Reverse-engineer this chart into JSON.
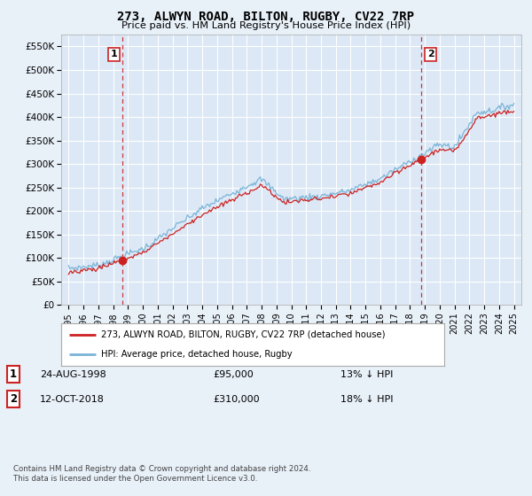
{
  "title": "273, ALWYN ROAD, BILTON, RUGBY, CV22 7RP",
  "subtitle": "Price paid vs. HM Land Registry's House Price Index (HPI)",
  "legend_line1": "273, ALWYN ROAD, BILTON, RUGBY, CV22 7RP (detached house)",
  "legend_line2": "HPI: Average price, detached house, Rugby",
  "footnote": "Contains HM Land Registry data © Crown copyright and database right 2024.\nThis data is licensed under the Open Government Licence v3.0.",
  "sale1_label": "1",
  "sale1_date": "24-AUG-1998",
  "sale1_price": "£95,000",
  "sale1_hpi": "13% ↓ HPI",
  "sale2_label": "2",
  "sale2_date": "12-OCT-2018",
  "sale2_price": "£310,000",
  "sale2_hpi": "18% ↓ HPI",
  "sale1_x": 1998.65,
  "sale1_y": 95000,
  "sale2_x": 2018.78,
  "sale2_y": 310000,
  "vline1_x": 1998.65,
  "vline2_x": 2018.78,
  "ylim": [
    0,
    575000
  ],
  "xlim": [
    1994.5,
    2025.5
  ],
  "yticks": [
    0,
    50000,
    100000,
    150000,
    200000,
    250000,
    300000,
    350000,
    400000,
    450000,
    500000,
    550000
  ],
  "ytick_labels": [
    "£0",
    "£50K",
    "£100K",
    "£150K",
    "£200K",
    "£250K",
    "£300K",
    "£350K",
    "£400K",
    "£450K",
    "£500K",
    "£550K"
  ],
  "xticks": [
    1995,
    1996,
    1997,
    1998,
    1999,
    2000,
    2001,
    2002,
    2003,
    2004,
    2005,
    2006,
    2007,
    2008,
    2009,
    2010,
    2011,
    2012,
    2013,
    2014,
    2015,
    2016,
    2017,
    2018,
    2019,
    2020,
    2021,
    2022,
    2023,
    2024,
    2025
  ],
  "hpi_color": "#7ab4d8",
  "price_color": "#cc2222",
  "vline_color": "#cc2222",
  "bg_color": "#e8f0f8",
  "plot_bg": "#dce8f5",
  "grid_color": "#c5d5e8"
}
